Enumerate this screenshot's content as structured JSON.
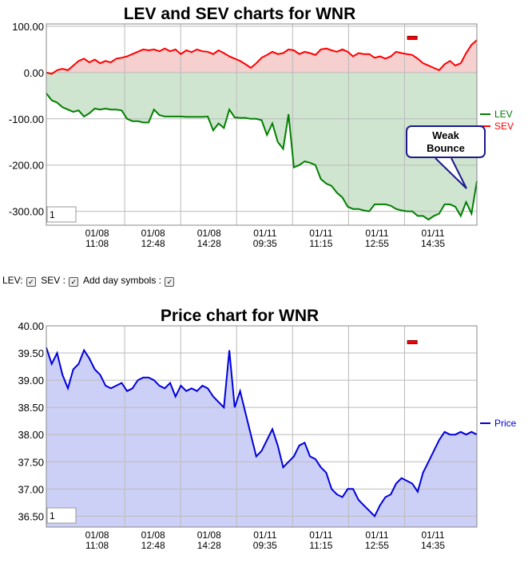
{
  "chart_data": [
    {
      "type": "line",
      "title": "LEV and SEV charts for WNR",
      "ylim": [
        -330,
        105
      ],
      "ytick_values": [
        100,
        0,
        -100,
        -200,
        -300
      ],
      "ytick_labels": [
        "100.00",
        "0.00",
        "-100.00",
        "-200.00",
        "-300.00"
      ],
      "x_tick_labels": [
        [
          "01/08",
          "11:08"
        ],
        [
          "01/08",
          "12:48"
        ],
        [
          "01/08",
          "14:28"
        ],
        [
          "01/11",
          "09:35"
        ],
        [
          "01/11",
          "11:15"
        ],
        [
          "01/11",
          "12:55"
        ],
        [
          "01/11",
          "14:35"
        ]
      ],
      "series": [
        {
          "name": "LEV",
          "color": "#008000",
          "fill": "#cfe5cf",
          "x": [
            0,
            0.5,
            1,
            1.5,
            2,
            2.5,
            3,
            3.5,
            4,
            4.5,
            5,
            5.5,
            6,
            6.5,
            7,
            7.5,
            8,
            8.5,
            9,
            9.5,
            10,
            10.5,
            11,
            11.5,
            12,
            12.5,
            13,
            13.5,
            14,
            14.5,
            15,
            15.5,
            16,
            16.5,
            17,
            17.5,
            18,
            18.5,
            19,
            19.5,
            20,
            20.5,
            21,
            21.5,
            22,
            22.5,
            23,
            23.5,
            24,
            24.5,
            25,
            25.5,
            26,
            26.5,
            27,
            27.5,
            28,
            28.5,
            29,
            29.5,
            30,
            30.5,
            31,
            31.5,
            32,
            32.5,
            33,
            33.5,
            34,
            34.5,
            35,
            35.5,
            36,
            36.5,
            37,
            37.5,
            38,
            38.5,
            39,
            39.5,
            40
          ],
          "values": [
            -45,
            -60,
            -65,
            -75,
            -80,
            -85,
            -82,
            -95,
            -88,
            -78,
            -80,
            -78,
            -80,
            -80,
            -82,
            -100,
            -105,
            -105,
            -108,
            -108,
            -80,
            -92,
            -95,
            -95,
            -95,
            -95,
            -96,
            -96,
            -96,
            -96,
            -95,
            -125,
            -110,
            -120,
            -80,
            -97,
            -98,
            -98,
            -100,
            -100,
            -103,
            -135,
            -110,
            -150,
            -165,
            -90,
            -205,
            -200,
            -192,
            -195,
            -200,
            -230,
            -240,
            -245,
            -260,
            -270,
            -290,
            -295,
            -295,
            -298,
            -300,
            -285,
            -285,
            -285,
            -288,
            -295,
            -298,
            -300,
            -300,
            -310,
            -310,
            -318,
            -310,
            -305,
            -285,
            -285,
            -290,
            -310,
            -280,
            -305,
            -235
          ]
        },
        {
          "name": "SEV",
          "color": "#ff0000",
          "fill": "#f6cfcf",
          "x": [
            0,
            0.5,
            1,
            1.5,
            2,
            2.5,
            3,
            3.5,
            4,
            4.5,
            5,
            5.5,
            6,
            6.5,
            7,
            7.5,
            8,
            8.5,
            9,
            9.5,
            10,
            10.5,
            11,
            11.5,
            12,
            12.5,
            13,
            13.5,
            14,
            14.5,
            15,
            15.5,
            16,
            16.5,
            17,
            17.5,
            18,
            18.5,
            19,
            19.5,
            20,
            20.5,
            21,
            21.5,
            22,
            22.5,
            23,
            23.5,
            24,
            24.5,
            25,
            25.5,
            26,
            26.5,
            27,
            27.5,
            28,
            28.5,
            29,
            29.5,
            30,
            30.5,
            31,
            31.5,
            32,
            32.5,
            33,
            33.5,
            34,
            34.5,
            35,
            35.5,
            36,
            36.5,
            37,
            37.5,
            38,
            38.5,
            39,
            39.5,
            40
          ],
          "values": [
            0,
            -3,
            5,
            8,
            5,
            15,
            25,
            30,
            22,
            28,
            20,
            25,
            22,
            30,
            32,
            35,
            40,
            45,
            50,
            48,
            50,
            46,
            52,
            46,
            50,
            40,
            48,
            44,
            50,
            46,
            45,
            40,
            48,
            42,
            35,
            30,
            25,
            18,
            10,
            20,
            32,
            38,
            45,
            40,
            42,
            50,
            48,
            40,
            45,
            42,
            38,
            50,
            52,
            48,
            45,
            50,
            45,
            35,
            42,
            40,
            40,
            32,
            35,
            30,
            35,
            45,
            42,
            40,
            38,
            30,
            20,
            15,
            10,
            5,
            18,
            25,
            15,
            20,
            42,
            60,
            70
          ]
        }
      ]
    },
    {
      "type": "area",
      "title": "Price chart for WNR",
      "ylim": [
        36.3,
        40.0
      ],
      "ytick_values": [
        40,
        39.5,
        39,
        38.5,
        38,
        37.5,
        37,
        36.5
      ],
      "ytick_labels": [
        "40.00",
        "39.50",
        "39.00",
        "38.50",
        "38.00",
        "37.50",
        "37.00",
        "36.50"
      ],
      "x_tick_labels": [
        [
          "01/08",
          "11:08"
        ],
        [
          "01/08",
          "12:48"
        ],
        [
          "01/08",
          "14:28"
        ],
        [
          "01/11",
          "09:35"
        ],
        [
          "01/11",
          "11:15"
        ],
        [
          "01/11",
          "12:55"
        ],
        [
          "01/11",
          "14:35"
        ]
      ],
      "series": [
        {
          "name": "Price",
          "color": "#0000dd",
          "fill": "#cdd0f6",
          "x": [
            0,
            0.5,
            1,
            1.5,
            2,
            2.5,
            3,
            3.5,
            4,
            4.5,
            5,
            5.5,
            6,
            6.5,
            7,
            7.5,
            8,
            8.5,
            9,
            9.5,
            10,
            10.5,
            11,
            11.5,
            12,
            12.5,
            13,
            13.5,
            14,
            14.5,
            15,
            15.5,
            16,
            16.5,
            17,
            17.5,
            18,
            18.5,
            19,
            19.5,
            20,
            20.5,
            21,
            21.5,
            22,
            22.5,
            23,
            23.5,
            24,
            24.5,
            25,
            25.5,
            26,
            26.5,
            27,
            27.5,
            28,
            28.5,
            29,
            29.5,
            30,
            30.5,
            31,
            31.5,
            32,
            32.5,
            33,
            33.5,
            34,
            34.5,
            35,
            35.5,
            36,
            36.5,
            37,
            37.5,
            38,
            38.5,
            39,
            39.5,
            40
          ],
          "values": [
            39.6,
            39.3,
            39.5,
            39.1,
            38.85,
            39.2,
            39.3,
            39.55,
            39.4,
            39.2,
            39.1,
            38.9,
            38.85,
            38.9,
            38.95,
            38.8,
            38.85,
            39,
            39.05,
            39.05,
            39.0,
            38.9,
            38.85,
            38.95,
            38.7,
            38.9,
            38.8,
            38.85,
            38.8,
            38.9,
            38.85,
            38.7,
            38.6,
            38.5,
            39.55,
            38.5,
            38.8,
            38.4,
            38.0,
            37.6,
            37.7,
            37.9,
            38.1,
            37.8,
            37.4,
            37.5,
            37.6,
            37.8,
            37.85,
            37.6,
            37.55,
            37.4,
            37.3,
            37.0,
            36.9,
            36.85,
            37.0,
            37.0,
            36.8,
            36.7,
            36.6,
            36.5,
            36.7,
            36.85,
            36.9,
            37.1,
            37.2,
            37.15,
            37.1,
            36.95,
            37.3,
            37.5,
            37.7,
            37.9,
            38.05,
            38.0,
            38.0,
            38.05,
            38.0,
            38.05,
            38.0
          ]
        }
      ]
    }
  ],
  "zoom_box_value": "1",
  "callout": {
    "line1": "Weak",
    "line2": "Bounce"
  },
  "controls": {
    "lev": "LEV:",
    "sev": "SEV :",
    "add_day": "Add day symbols :",
    "check": "✓"
  }
}
